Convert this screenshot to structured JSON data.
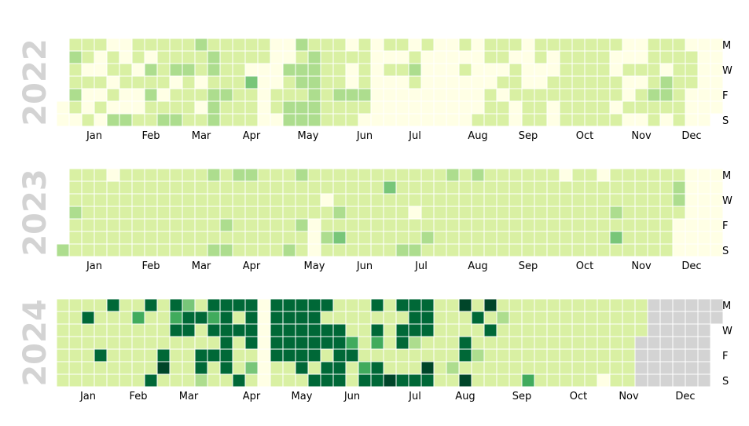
{
  "chart_data": [
    {
      "type": "heatmap",
      "title": "2022",
      "first_weekday": 5,
      "day_labels": [
        "M",
        "W",
        "F",
        "S"
      ],
      "month_labels": [
        "Jan",
        "Feb",
        "Mar",
        "Apr",
        "May",
        "Jun",
        "Jul",
        "Aug",
        "Sep",
        "Oct",
        "Nov",
        "Dec"
      ],
      "values": [
        0,
        0,
        1,
        2,
        1,
        1,
        2,
        1,
        0,
        1,
        1,
        0,
        1,
        0,
        0,
        1,
        1,
        0,
        0,
        1,
        0,
        1,
        0,
        0,
        1,
        1,
        0,
        1,
        0,
        2,
        0,
        0,
        1,
        1,
        0,
        0,
        2,
        1,
        1,
        0,
        1,
        0,
        0,
        1,
        1,
        0,
        2,
        1,
        2,
        1,
        1,
        1,
        1,
        1,
        1,
        0,
        1,
        2,
        1,
        1,
        2,
        0,
        1,
        1,
        2,
        1,
        1,
        2,
        1,
        1,
        1,
        1,
        2,
        1,
        1,
        0,
        1,
        0,
        1,
        1,
        2,
        2,
        1,
        2,
        2,
        2,
        1,
        1,
        1,
        1,
        2,
        1,
        1,
        1,
        1,
        1,
        1,
        1,
        1,
        1,
        1,
        1,
        0,
        3,
        1,
        1,
        1,
        1,
        1,
        0,
        0,
        0,
        0,
        0,
        0,
        0,
        0,
        0,
        1,
        1,
        0,
        0,
        0,
        2,
        1,
        1,
        2,
        2,
        2,
        1,
        2,
        2,
        1,
        2,
        2,
        1,
        2,
        2,
        2,
        2,
        2,
        2,
        1,
        1,
        1,
        1,
        1,
        1,
        1,
        1,
        1,
        1,
        1,
        2,
        1,
        1,
        0,
        1,
        0,
        0,
        2,
        1,
        1,
        1,
        1,
        1,
        1,
        2,
        1,
        0,
        0,
        0,
        0,
        0,
        0,
        0,
        0,
        1,
        0,
        1,
        0,
        0,
        0,
        0,
        1,
        0,
        1,
        0,
        0,
        0,
        0,
        0,
        1,
        2,
        1,
        0,
        0,
        0,
        1,
        0,
        0,
        0,
        0,
        0,
        0,
        0,
        0,
        0,
        0,
        0,
        0,
        0,
        0,
        0,
        0,
        0,
        0,
        0,
        0,
        1,
        0,
        1,
        0,
        0,
        0,
        0,
        0,
        0,
        0,
        0,
        0,
        0,
        1,
        1,
        1,
        0,
        0,
        1,
        1,
        1,
        1,
        1,
        0,
        1,
        0,
        1,
        1,
        1,
        0,
        1,
        1,
        1,
        0,
        0,
        0,
        0,
        0,
        0,
        1,
        1,
        1,
        1,
        1,
        0,
        0,
        1,
        1,
        1,
        1,
        0,
        0,
        1,
        1,
        0,
        0,
        1,
        1,
        1,
        1,
        1,
        1,
        1,
        1,
        1,
        1,
        1,
        1,
        1,
        1,
        1,
        1,
        1,
        1,
        1,
        1,
        1,
        1,
        1,
        1,
        1,
        1,
        1,
        1,
        1,
        0,
        0,
        1,
        1,
        0,
        1,
        0,
        0,
        1,
        0,
        0,
        1,
        0,
        0,
        0,
        1,
        0,
        1,
        1,
        0,
        1,
        1,
        1,
        1,
        2,
        1,
        1,
        1,
        1,
        0,
        2,
        2,
        1,
        0,
        1,
        1,
        1,
        1,
        1,
        1,
        1,
        0,
        1,
        1,
        1,
        0,
        0
      ]
    },
    {
      "type": "heatmap",
      "title": "2023",
      "first_weekday": 6,
      "day_labels": [
        "M",
        "W",
        "F",
        "S"
      ],
      "month_labels": [
        "Jan",
        "Feb",
        "Mar",
        "Apr",
        "May",
        "Jun",
        "Jul",
        "Aug",
        "Sep",
        "Oct",
        "Nov",
        "Dec"
      ],
      "values": [
        2,
        1,
        1,
        1,
        2,
        1,
        1,
        1,
        1,
        1,
        1,
        1,
        1,
        1,
        1,
        1,
        1,
        1,
        1,
        1,
        1,
        1,
        0,
        1,
        1,
        1,
        1,
        1,
        1,
        1,
        1,
        1,
        1,
        1,
        1,
        1,
        1,
        1,
        1,
        1,
        1,
        1,
        1,
        1,
        1,
        1,
        1,
        1,
        1,
        1,
        1,
        1,
        1,
        1,
        1,
        1,
        1,
        1,
        1,
        1,
        1,
        1,
        1,
        1,
        1,
        1,
        1,
        1,
        1,
        1,
        1,
        1,
        1,
        1,
        1,
        1,
        1,
        1,
        2,
        1,
        1,
        1,
        1,
        1,
        2,
        1,
        1,
        1,
        1,
        2,
        1,
        2,
        2,
        1,
        1,
        1,
        1,
        1,
        1,
        2,
        1,
        1,
        1,
        1,
        1,
        1,
        1,
        1,
        1,
        1,
        1,
        1,
        1,
        1,
        1,
        1,
        1,
        1,
        1,
        1,
        1,
        1,
        1,
        1,
        1,
        1,
        2,
        2,
        1,
        1,
        1,
        2,
        1,
        1,
        1,
        1,
        1,
        1,
        0,
        0,
        0,
        1,
        1,
        0,
        1,
        1,
        2,
        1,
        1,
        1,
        1,
        2,
        1,
        3,
        1,
        1,
        1,
        1,
        1,
        1,
        1,
        1,
        1,
        1,
        1,
        1,
        1,
        1,
        1,
        1,
        1,
        1,
        1,
        1,
        1,
        1,
        1,
        3,
        1,
        1,
        1,
        1,
        1,
        1,
        1,
        1,
        1,
        1,
        1,
        2,
        1,
        1,
        1,
        0,
        1,
        1,
        2,
        1,
        1,
        1,
        1,
        1,
        2,
        1,
        1,
        1,
        1,
        1,
        1,
        1,
        1,
        2,
        1,
        1,
        1,
        1,
        1,
        1,
        1,
        1,
        1,
        1,
        1,
        1,
        1,
        2,
        1,
        1,
        1,
        1,
        1,
        1,
        1,
        1,
        1,
        1,
        1,
        1,
        1,
        1,
        1,
        1,
        1,
        1,
        1,
        1,
        1,
        1,
        1,
        1,
        1,
        1,
        1,
        1,
        1,
        1,
        1,
        1,
        1,
        1,
        1,
        1,
        1,
        1,
        1,
        1,
        1,
        1,
        1,
        1,
        1,
        1,
        1,
        1,
        0,
        1,
        1,
        1,
        1,
        1,
        1,
        1,
        1,
        1,
        1,
        1,
        1,
        1,
        1,
        1,
        1,
        1,
        1,
        1,
        1,
        0,
        1,
        1,
        1,
        1,
        1,
        1,
        1,
        1,
        1,
        2,
        1,
        3,
        1,
        1,
        1,
        1,
        1,
        1,
        1,
        1,
        1,
        1,
        1,
        1,
        1,
        1,
        1,
        1,
        1,
        1,
        1,
        1,
        1,
        1,
        1,
        1,
        1,
        1,
        1,
        1,
        1,
        1,
        2,
        2,
        1
      ]
    },
    {
      "type": "heatmap",
      "title": "2024",
      "first_weekday": 0,
      "day_labels": [
        "M",
        "W",
        "F",
        "S"
      ],
      "month_labels": [
        "Jan",
        "Feb",
        "Mar",
        "Apr",
        "May",
        "Jun",
        "Jul",
        "Aug",
        "Sep",
        "Oct",
        "Nov",
        "Dec"
      ],
      "values": [
        1,
        1,
        1,
        1,
        1,
        1,
        1,
        1,
        1,
        1,
        1,
        1,
        1,
        1,
        1,
        5,
        1,
        1,
        1,
        1,
        1,
        1,
        1,
        1,
        1,
        5,
        1,
        1,
        5,
        1,
        1,
        1,
        1,
        1,
        1,
        1,
        1,
        1,
        1,
        1,
        1,
        1,
        1,
        4,
        1,
        1,
        1,
        1,
        1,
        5,
        1,
        1,
        1,
        1,
        1,
        5,
        1,
        1,
        1,
        1,
        5,
        6,
        1,
        5,
        4,
        5,
        1,
        1,
        1,
        1,
        3,
        5,
        5,
        1,
        1,
        1,
        1,
        1,
        5,
        1,
        1,
        5,
        5,
        2,
        5,
        4,
        5,
        1,
        5,
        1,
        1,
        5,
        5,
        5,
        5,
        5,
        5,
        1,
        5,
        1,
        5,
        1,
        1,
        1,
        5,
        5,
        5,
        5,
        5,
        1,
        3,
        1,
        0,
        0,
        0,
        0,
        0,
        0,
        0,
        5,
        5,
        5,
        5,
        5,
        1,
        1,
        5,
        5,
        5,
        5,
        5,
        1,
        1,
        5,
        5,
        5,
        5,
        5,
        5,
        1,
        5,
        5,
        5,
        5,
        5,
        1,
        5,
        5,
        1,
        5,
        5,
        1,
        5,
        5,
        1,
        1,
        5,
        5,
        5,
        5,
        5,
        1,
        1,
        1,
        4,
        5,
        1,
        1,
        1,
        1,
        1,
        1,
        1,
        4,
        5,
        5,
        1,
        5,
        4,
        1,
        5,
        5,
        1,
        1,
        1,
        1,
        1,
        1,
        6,
        5,
        1,
        5,
        5,
        1,
        1,
        5,
        5,
        5,
        5,
        2,
        1,
        1,
        5,
        5,
        5,
        5,
        1,
        1,
        6,
        5,
        1,
        1,
        1,
        1,
        1,
        1,
        1,
        1,
        1,
        1,
        1,
        1,
        2,
        1,
        6,
        1,
        1,
        5,
        5,
        1,
        6,
        1,
        5,
        1,
        1,
        2,
        1,
        1,
        6,
        1,
        5,
        1,
        1,
        1,
        1,
        1,
        2,
        1,
        1,
        1,
        1,
        1,
        1,
        1,
        1,
        1,
        1,
        1,
        1,
        1,
        1,
        1,
        1,
        1,
        1,
        4,
        1,
        1,
        1,
        1,
        1,
        1,
        1,
        1,
        1,
        1,
        1,
        1,
        1,
        1,
        1,
        1,
        1,
        1,
        1,
        1,
        1,
        1,
        1,
        1,
        1,
        1,
        1,
        1,
        1,
        1,
        1,
        1,
        1,
        1,
        1,
        1,
        1,
        1,
        1,
        1,
        1,
        0,
        1,
        1,
        1,
        1,
        1,
        1,
        1,
        1,
        1,
        1,
        1,
        1,
        1,
        1,
        1,
        1,
        1,
        1,
        1,
        1,
        1,
        1,
        1,
        1,
        1,
        1,
        1,
        1,
        2,
        1,
        1,
        1,
        1,
        1,
        1,
        1,
        1,
        1,
        1,
        1,
        1,
        1
      ],
      "missing_after_index": 324
    }
  ],
  "palette": {
    "levels": [
      "#ffffe5",
      "#d9f0a3",
      "#addd8e",
      "#78c679",
      "#41ab5d",
      "#006837",
      "#004529"
    ],
    "missing": "#d3d3d3",
    "year_label_color": "#d3d3d3"
  }
}
